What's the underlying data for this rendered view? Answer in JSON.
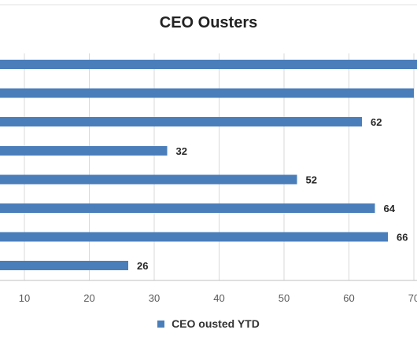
{
  "chart_data": {
    "type": "bar",
    "orientation": "horizontal",
    "title": "CEO Ousters",
    "xlabel": "",
    "ylabel": "",
    "xlim": [
      0,
      70
    ],
    "x_ticks": [
      10,
      20,
      30,
      40,
      50,
      60,
      70
    ],
    "x_tick_labels": [
      "10",
      "20",
      "30",
      "40",
      "50",
      "60",
      "70"
    ],
    "grid": "vertical",
    "legend": "bottom",
    "colors": {
      "bar": "#4a7ebb",
      "grid": "#d9d9d9",
      "axis": "#bfbfbf"
    },
    "series": [
      {
        "name": "CEO ousted YTD",
        "values": [
          72,
          70,
          62,
          32,
          52,
          64,
          66,
          26
        ],
        "data_labels": [
          "",
          "",
          "62",
          "32",
          "52",
          "64",
          "66",
          "26"
        ]
      }
    ]
  }
}
